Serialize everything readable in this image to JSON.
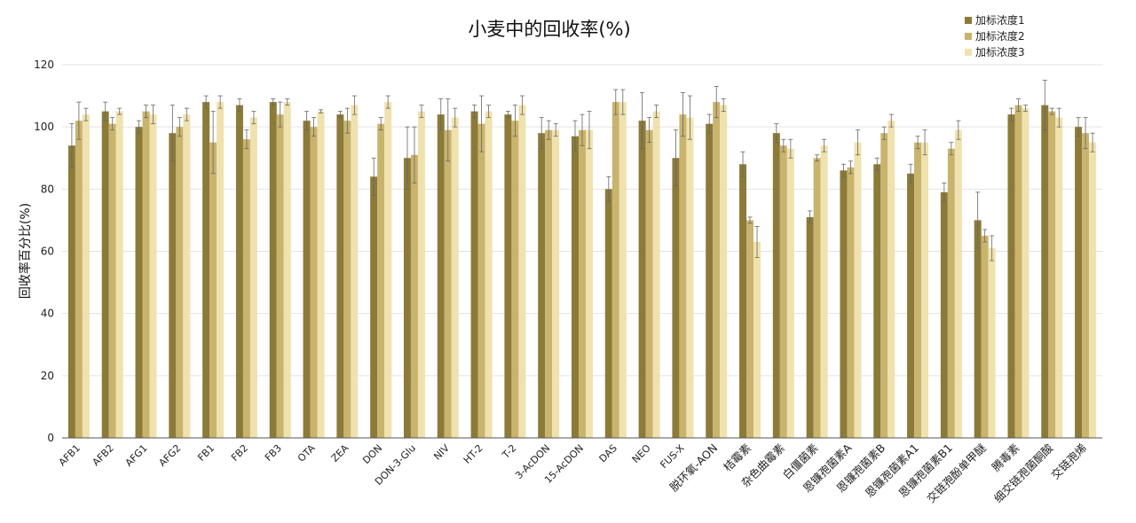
{
  "chart_data": {
    "type": "bar",
    "title": "小麦中的回收率(%)",
    "xlabel": "",
    "ylabel": "回收率百分比(%)",
    "ylim": [
      0,
      120
    ],
    "yticks": [
      0,
      20,
      40,
      60,
      80,
      100,
      120
    ],
    "grid": "horizontal",
    "legend_position": "top-right",
    "error_bars": true,
    "categories": [
      "AFB1",
      "AFB2",
      "AFG1",
      "AFG2",
      "FB1",
      "FB2",
      "FB3",
      "OTA",
      "ZEA",
      "DON",
      "DON-3-Glu",
      "NIV",
      "HT-2",
      "T-2",
      "3-AcDON",
      "15-AcDON",
      "DAS",
      "NEO",
      "FUS-X",
      "脱环氧-AON",
      "桔霉素",
      "杂色曲霉素",
      "白僵菌素",
      "恩镰孢菌素A",
      "恩镰孢菌素B",
      "恩镰孢菌素A1",
      "恩镰孢菌素B1",
      "交链孢酚单甲醚",
      "腾毒素",
      "细交链孢菌酮酸",
      "交链孢烯"
    ],
    "series": [
      {
        "name": "加标浓度1",
        "color": "#8c7a38",
        "values": [
          94,
          105,
          100,
          98,
          108,
          107,
          108,
          102,
          104,
          84,
          90,
          104,
          105,
          104,
          98,
          97,
          80,
          102,
          90,
          101,
          88,
          98,
          71,
          86,
          88,
          85,
          79,
          70,
          104,
          107,
          100
        ],
        "errors": [
          7,
          3,
          2,
          9,
          2,
          2,
          1,
          3,
          1,
          6,
          10,
          5,
          2,
          1,
          5,
          5,
          4,
          9,
          9,
          3,
          4,
          3,
          2,
          2,
          2,
          3,
          3,
          9,
          2,
          8,
          3
        ]
      },
      {
        "name": "加标浓度2",
        "color": "#c9b46e",
        "values": [
          102,
          101,
          105,
          100,
          95,
          96,
          104,
          100,
          102,
          101,
          91,
          99,
          101,
          102,
          99,
          99,
          108,
          99,
          104,
          108,
          70,
          94,
          90,
          87,
          98,
          95,
          93,
          65,
          107,
          105,
          98
        ],
        "errors": [
          6,
          2,
          2,
          3,
          10,
          3,
          4,
          3,
          4,
          2,
          9,
          10,
          9,
          5,
          3,
          5,
          4,
          4,
          7,
          5,
          1,
          2,
          1,
          2,
          2,
          2,
          2,
          2,
          2,
          1,
          5
        ]
      },
      {
        "name": "加标浓度3",
        "color": "#f0e2ae",
        "values": [
          104,
          105,
          104,
          104,
          108,
          103,
          108,
          105,
          107,
          108,
          105,
          103,
          105,
          107,
          99,
          99,
          108,
          105,
          103,
          107,
          63,
          93,
          94,
          95,
          102,
          95,
          99,
          61,
          106,
          103,
          95
        ],
        "errors": [
          2,
          1,
          3,
          2,
          2,
          2,
          1,
          0.5,
          3,
          2,
          2,
          3,
          2,
          3,
          2,
          6,
          4,
          2,
          7,
          2,
          5,
          3,
          2,
          4,
          2,
          4,
          3,
          4,
          1,
          3,
          3
        ]
      }
    ]
  }
}
